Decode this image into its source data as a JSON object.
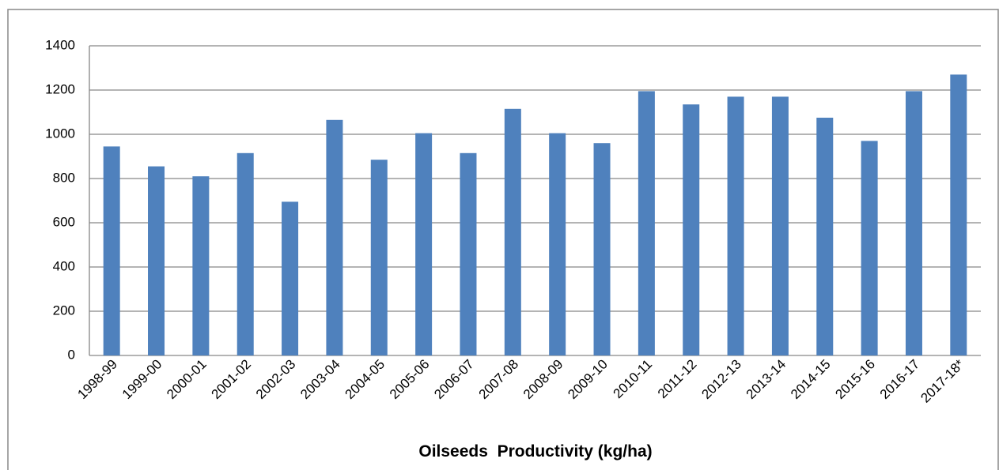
{
  "chart_data": {
    "type": "bar",
    "title": "Oilseeds  Productivity (kg/ha)",
    "categories": [
      "1998-99",
      "1999-00",
      "2000-01",
      "2001-02",
      "2002-03",
      "2003-04",
      "2004-05",
      "2005-06",
      "2006-07",
      "2007-08",
      "2008-09",
      "2009-10",
      "2010-11",
      "2011-12",
      "2012-13",
      "2013-14",
      "2014-15",
      "2015-16",
      "2016-17",
      "2017-18*"
    ],
    "values": [
      945,
      855,
      810,
      915,
      695,
      1065,
      885,
      1005,
      915,
      1115,
      1005,
      960,
      1195,
      1135,
      1170,
      1170,
      1075,
      970,
      1195,
      1270
    ],
    "color": "#4f81bd",
    "ylim": [
      0,
      1400
    ],
    "yticks": [
      0,
      200,
      400,
      600,
      800,
      1000,
      1200,
      1400
    ],
    "grid": true
  }
}
